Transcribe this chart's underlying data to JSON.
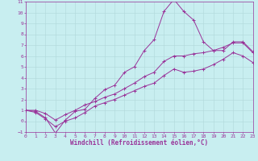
{
  "xlabel": "Windchill (Refroidissement éolien,°C)",
  "bg_color": "#c8eef0",
  "line_color": "#993399",
  "xlim": [
    0,
    23
  ],
  "ylim": [
    -1,
    11
  ],
  "xticks": [
    0,
    1,
    2,
    3,
    4,
    5,
    6,
    7,
    8,
    9,
    10,
    11,
    12,
    13,
    14,
    15,
    16,
    17,
    18,
    19,
    20,
    21,
    22,
    23
  ],
  "yticks": [
    -1,
    0,
    1,
    2,
    3,
    4,
    5,
    6,
    7,
    8,
    9,
    10,
    11
  ],
  "curve1_x": [
    0,
    1,
    2,
    3,
    4,
    5,
    6,
    7,
    8,
    9,
    10,
    11,
    12,
    13,
    14,
    15,
    16,
    17,
    18,
    19,
    20,
    21,
    22,
    23
  ],
  "curve1_y": [
    1.0,
    0.9,
    0.3,
    -1.1,
    0.1,
    0.9,
    1.1,
    2.1,
    2.9,
    3.3,
    4.5,
    5.0,
    6.5,
    7.5,
    10.1,
    11.2,
    10.1,
    9.3,
    7.3,
    6.5,
    6.5,
    7.3,
    7.3,
    6.4
  ],
  "curve2_x": [
    0,
    1,
    2,
    3,
    4,
    5,
    6,
    7,
    8,
    9,
    10,
    11,
    12,
    13,
    14,
    15,
    16,
    17,
    18,
    19,
    20,
    21,
    22,
    23
  ],
  "curve2_y": [
    1.0,
    1.0,
    0.7,
    0.1,
    0.6,
    1.0,
    1.5,
    1.8,
    2.2,
    2.5,
    3.0,
    3.5,
    4.1,
    4.5,
    5.5,
    6.0,
    6.0,
    6.2,
    6.3,
    6.5,
    6.8,
    7.2,
    7.2,
    6.3
  ],
  "curve3_x": [
    0,
    1,
    2,
    3,
    4,
    5,
    6,
    7,
    8,
    9,
    10,
    11,
    12,
    13,
    14,
    15,
    16,
    17,
    18,
    19,
    20,
    21,
    22,
    23
  ],
  "curve3_y": [
    1.0,
    0.8,
    0.2,
    -0.5,
    0.0,
    0.3,
    0.8,
    1.4,
    1.7,
    2.0,
    2.4,
    2.8,
    3.2,
    3.5,
    4.2,
    4.8,
    4.5,
    4.6,
    4.8,
    5.2,
    5.7,
    6.3,
    6.0,
    5.4
  ],
  "grid_color": "#b0d8da",
  "tick_fontsize": 4.5,
  "label_fontsize": 5.5
}
